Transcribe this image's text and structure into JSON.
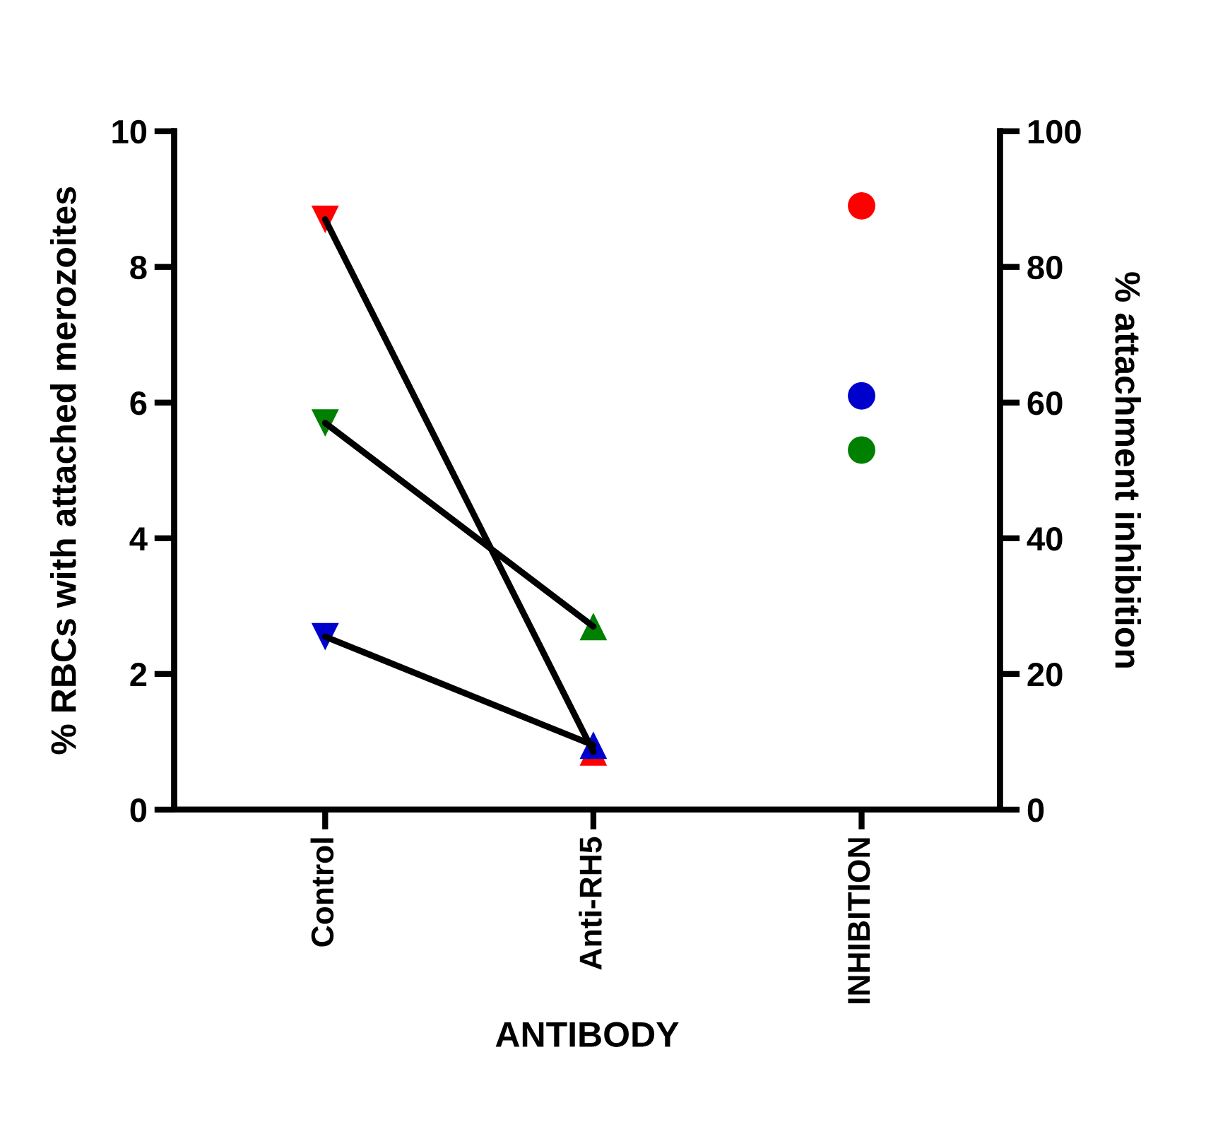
{
  "chart_data": {
    "type": "line",
    "categories": [
      "Control",
      "Anti-RH5",
      "INHIBITION"
    ],
    "xlabel": "ANTIBODY",
    "ylabel": "% RBCs with attached merozoites",
    "y2label": "% attachment inhibition",
    "ylim": [
      0,
      10
    ],
    "yticks": [
      0,
      2,
      4,
      6,
      8,
      10
    ],
    "y2lim": [
      0,
      100
    ],
    "y2ticks": [
      0,
      20,
      40,
      60,
      80,
      100
    ],
    "grid": false,
    "legend": false,
    "series": [
      {
        "color": "#000000",
        "marker": "none",
        "values": [
          8.7,
          0.85,
          null
        ]
      },
      {
        "color": "#000000",
        "marker": "none",
        "values": [
          5.7,
          2.7,
          null
        ]
      },
      {
        "color": "#000000",
        "marker": "none",
        "values": [
          2.55,
          0.95,
          null
        ]
      },
      {
        "type": "scatter",
        "marker": "triangle_down",
        "x": [
          "Control",
          "Control",
          "Control"
        ],
        "values": [
          8.7,
          5.7,
          2.55
        ],
        "colors": [
          "#ff0000",
          "#008000",
          "#0000cc"
        ]
      },
      {
        "type": "scatter",
        "marker": "triangle",
        "x": [
          "Anti-RH5",
          "Anti-RH5",
          "Anti-RH5"
        ],
        "values": [
          0.85,
          2.7,
          0.95
        ],
        "colors": [
          "#ff0000",
          "#008000",
          "#0000cc"
        ]
      },
      {
        "type": "scatter",
        "marker": "circle",
        "axis": "y2",
        "x": [
          "INHIBITION",
          "INHIBITION",
          "INHIBITION"
        ],
        "values": [
          89,
          53,
          61
        ],
        "colors": [
          "#ff0000",
          "#008000",
          "#0000cc"
        ]
      }
    ]
  }
}
